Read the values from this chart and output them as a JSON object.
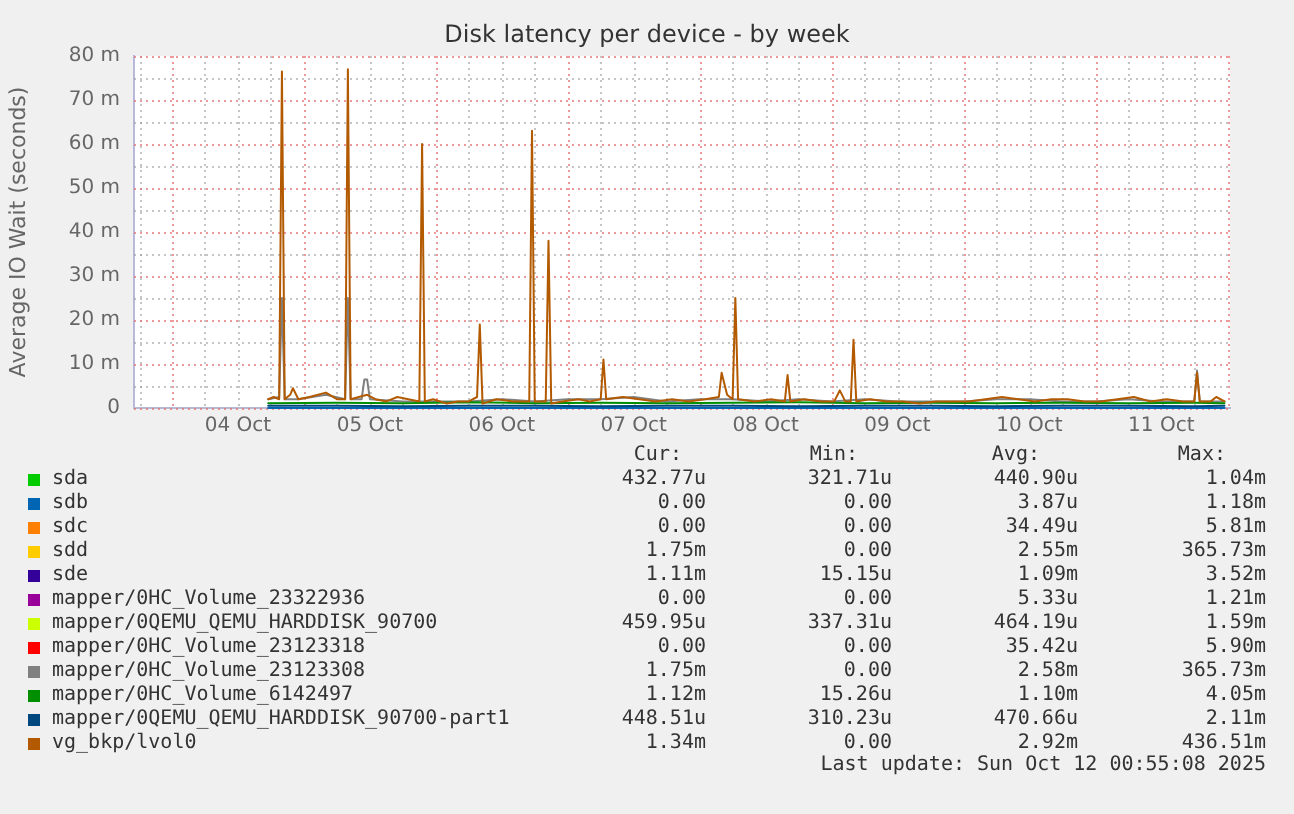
{
  "chart_data": {
    "type": "line",
    "title": "Disk latency per device - by week",
    "ylabel": "Average IO Wait (seconds)",
    "xlim": [
      "2025-10-03T17:05",
      "2025-10-12T00:30"
    ],
    "xticks": [
      {
        "value": "2025-10-03T18:00",
        "label": null
      },
      {
        "value": "2025-10-04T00:00",
        "label": null
      },
      {
        "value": "2025-10-04T06:00",
        "label": null
      },
      {
        "value": "2025-10-04T12:00",
        "label": "04 Oct"
      },
      {
        "value": "2025-10-04T18:00",
        "label": null
      },
      {
        "value": "2025-10-05T00:00",
        "label": null
      },
      {
        "value": "2025-10-05T06:00",
        "label": null
      },
      {
        "value": "2025-10-05T12:00",
        "label": "05 Oct"
      },
      {
        "value": "2025-10-05T18:00",
        "label": null
      },
      {
        "value": "2025-10-06T00:00",
        "label": null
      },
      {
        "value": "2025-10-06T06:00",
        "label": null
      },
      {
        "value": "2025-10-06T12:00",
        "label": "06 Oct"
      },
      {
        "value": "2025-10-06T18:00",
        "label": null
      },
      {
        "value": "2025-10-07T00:00",
        "label": null
      },
      {
        "value": "2025-10-07T06:00",
        "label": null
      },
      {
        "value": "2025-10-07T12:00",
        "label": "07 Oct"
      },
      {
        "value": "2025-10-07T18:00",
        "label": null
      },
      {
        "value": "2025-10-08T00:00",
        "label": null
      },
      {
        "value": "2025-10-08T06:00",
        "label": null
      },
      {
        "value": "2025-10-08T12:00",
        "label": "08 Oct"
      },
      {
        "value": "2025-10-08T18:00",
        "label": null
      },
      {
        "value": "2025-10-09T00:00",
        "label": null
      },
      {
        "value": "2025-10-09T06:00",
        "label": null
      },
      {
        "value": "2025-10-09T12:00",
        "label": "09 Oct"
      },
      {
        "value": "2025-10-09T18:00",
        "label": null
      },
      {
        "value": "2025-10-10T00:00",
        "label": null
      },
      {
        "value": "2025-10-10T06:00",
        "label": null
      },
      {
        "value": "2025-10-10T12:00",
        "label": "10 Oct"
      },
      {
        "value": "2025-10-10T18:00",
        "label": null
      },
      {
        "value": "2025-10-11T00:00",
        "label": null
      },
      {
        "value": "2025-10-11T06:00",
        "label": null
      },
      {
        "value": "2025-10-11T12:00",
        "label": "11 Oct"
      },
      {
        "value": "2025-10-11T18:00",
        "label": null
      },
      {
        "value": "2025-10-12T00:00",
        "label": null
      }
    ],
    "ylim": [
      0,
      80
    ],
    "yticks": [
      0,
      {
        "value": 5,
        "label": null
      },
      {
        "value": 10,
        "label": "10 m"
      },
      {
        "value": 15,
        "label": null
      },
      {
        "value": 20,
        "label": "20 m"
      },
      {
        "value": 25,
        "label": null
      },
      {
        "value": 30,
        "label": "30 m"
      },
      {
        "value": 35,
        "label": null
      },
      {
        "value": 40,
        "label": "40 m"
      },
      {
        "value": 45,
        "label": null
      },
      {
        "value": 50,
        "label": "50 m"
      },
      {
        "value": 55,
        "label": null
      },
      {
        "value": 60,
        "label": "60 m"
      },
      {
        "value": 65,
        "label": null
      },
      {
        "value": 70,
        "label": "70 m"
      },
      {
        "value": 75,
        "label": null
      },
      {
        "value": 80,
        "label": "80 m"
      }
    ],
    "grid": true,
    "legend": "bottom",
    "x": [
      "2025-10-04T17:30",
      "2025-10-05T06:00",
      "2025-10-05T18:00",
      "2025-10-06T06:00",
      "2025-10-06T18:00",
      "2025-10-07T06:00",
      "2025-10-07T18:00",
      "2025-10-08T06:00",
      "2025-10-08T18:00",
      "2025-10-09T06:00",
      "2025-10-09T18:00",
      "2025-10-10T06:00",
      "2025-10-10T18:00",
      "2025-10-11T06:00",
      "2025-10-11T18:00",
      "2025-10-11T23:30"
    ],
    "series": [
      {
        "name": "sda",
        "color": "#00cc00",
        "values": [
          null,
          null,
          null,
          null,
          null,
          null,
          null,
          null,
          null,
          null,
          null,
          null,
          null,
          null,
          null,
          null
        ]
      },
      {
        "name": "sdb",
        "color": "#0066b3",
        "values": [
          0,
          0,
          0,
          0,
          0,
          0,
          0,
          0,
          0,
          0,
          0,
          0,
          0,
          0,
          0,
          0
        ]
      },
      {
        "name": "sdc",
        "color": "#ff8000",
        "values": [
          null,
          null,
          null,
          null,
          null,
          null,
          null,
          null,
          null,
          null,
          null,
          null,
          null,
          null,
          null,
          null
        ]
      },
      {
        "name": "sdd",
        "color": "#ffcc00",
        "values": [
          null,
          null,
          null,
          null,
          null,
          null,
          null,
          null,
          null,
          null,
          null,
          null,
          null,
          null,
          null,
          null
        ]
      },
      {
        "name": "sde",
        "color": "#330099",
        "values": [
          null,
          null,
          null,
          null,
          null,
          null,
          null,
          null,
          null,
          null,
          null,
          null,
          null,
          null,
          null,
          null
        ]
      },
      {
        "name": "mapper/0HC_Volume_23322936",
        "color": "#990099",
        "values": [
          null,
          null,
          null,
          null,
          null,
          null,
          null,
          null,
          null,
          null,
          null,
          null,
          null,
          null,
          null,
          null
        ]
      },
      {
        "name": "mapper/0QEMU_QEMU_HARDDISK_90700",
        "color": "#ccff00",
        "values": [
          null,
          null,
          null,
          null,
          null,
          null,
          null,
          null,
          null,
          null,
          null,
          null,
          null,
          null,
          null,
          null
        ]
      },
      {
        "name": "mapper/0HC_Volume_23123318",
        "color": "#ff0000",
        "values": [
          null,
          null,
          null,
          null,
          null,
          null,
          null,
          null,
          null,
          null,
          null,
          null,
          null,
          null,
          null,
          null
        ]
      },
      {
        "name": "mapper/0HC_Volume_23123308",
        "color": "#808080",
        "x": [
          "2025-10-04T17:30",
          "2025-10-04T19:30",
          "2025-10-04T20:00",
          "2025-10-04T20:30",
          "2025-10-04T23:00",
          "2025-10-05T04:00",
          "2025-10-05T07:30",
          "2025-10-05T08:00",
          "2025-10-05T08:30",
          "2025-10-05T10:30",
          "2025-10-05T11:00",
          "2025-10-05T11:30",
          "2025-10-05T12:00",
          "2025-10-05T18:00",
          "2025-10-06T00:00",
          "2025-10-06T06:00",
          "2025-10-06T12:00",
          "2025-10-06T18:00",
          "2025-10-07T00:00",
          "2025-10-07T06:00",
          "2025-10-07T12:00",
          "2025-10-07T18:00",
          "2025-10-08T00:00",
          "2025-10-08T06:00",
          "2025-10-08T12:00",
          "2025-10-08T18:00",
          "2025-10-09T00:00",
          "2025-10-09T06:00",
          "2025-10-09T12:00",
          "2025-10-09T18:00",
          "2025-10-10T00:00",
          "2025-10-10T06:00",
          "2025-10-10T12:00",
          "2025-10-10T18:00",
          "2025-10-11T00:00",
          "2025-10-11T06:00",
          "2025-10-11T12:00",
          "2025-10-11T18:00",
          "2025-10-11T18:30",
          "2025-10-11T19:00",
          "2025-10-11T23:30"
        ],
        "values": [
          2,
          2.5,
          25,
          2,
          2,
          3,
          2,
          25,
          2,
          2,
          6.5,
          6.5,
          2,
          1.5,
          1.5,
          1.5,
          2,
          1.5,
          2,
          2,
          2.5,
          1.5,
          2,
          2,
          1.5,
          2,
          1.5,
          2,
          1.5,
          1.5,
          1.5,
          2,
          2,
          1.5,
          1.5,
          2,
          1.5,
          1.5,
          8.5,
          1.5,
          1.5
        ]
      },
      {
        "name": "mapper/0HC_Volume_6142497",
        "color": "#008f00",
        "values": [
          1.1,
          1.2,
          1.1,
          1.3,
          1.1,
          1.2,
          1.1,
          1.2,
          1.3,
          1.1,
          1.2,
          1.1,
          1.2,
          1.1,
          1.2,
          1.1
        ]
      },
      {
        "name": "mapper/0QEMU_QEMU_HARDDISK_90700-part1",
        "color": "#00487d",
        "values": [
          0.5,
          0.5,
          0.4,
          0.5,
          0.5,
          0.4,
          0.5,
          0.5,
          0.4,
          0.5,
          0.5,
          0.4,
          0.5,
          0.5,
          0.4,
          0.5
        ]
      },
      {
        "name": "vg_bkp/lvol0",
        "color": "#b35a00",
        "x": [
          "2025-10-04T17:30",
          "2025-10-04T18:30",
          "2025-10-04T19:30",
          "2025-10-04T20:00",
          "2025-10-04T20:30",
          "2025-10-04T21:30",
          "2025-10-04T22:00",
          "2025-10-04T23:00",
          "2025-10-05T01:00",
          "2025-10-05T04:00",
          "2025-10-05T06:00",
          "2025-10-05T07:30",
          "2025-10-05T08:00",
          "2025-10-05T08:30",
          "2025-10-05T10:00",
          "2025-10-05T11:30",
          "2025-10-05T13:00",
          "2025-10-05T15:00",
          "2025-10-05T17:00",
          "2025-10-05T19:00",
          "2025-10-05T21:00",
          "2025-10-05T21:30",
          "2025-10-05T22:00",
          "2025-10-05T23:30",
          "2025-10-06T02:00",
          "2025-10-06T04:00",
          "2025-10-06T06:00",
          "2025-10-06T07:30",
          "2025-10-06T08:00",
          "2025-10-06T08:30",
          "2025-10-06T11:00",
          "2025-10-06T14:00",
          "2025-10-06T17:00",
          "2025-10-06T17:30",
          "2025-10-06T18:00",
          "2025-10-06T20:00",
          "2025-10-06T20:30",
          "2025-10-06T21:00",
          "2025-10-06T23:00",
          "2025-10-07T02:00",
          "2025-10-07T04:00",
          "2025-10-07T06:00",
          "2025-10-07T06:30",
          "2025-10-07T07:00",
          "2025-10-07T10:00",
          "2025-10-07T13:00",
          "2025-10-07T16:00",
          "2025-10-07T19:00",
          "2025-10-07T22:00",
          "2025-10-08T01:00",
          "2025-10-08T03:30",
          "2025-10-08T04:00",
          "2025-10-08T05:00",
          "2025-10-08T06:00",
          "2025-10-08T06:30",
          "2025-10-08T07:00",
          "2025-10-08T10:00",
          "2025-10-08T13:00",
          "2025-10-08T15:30",
          "2025-10-08T16:00",
          "2025-10-08T16:30",
          "2025-10-08T19:00",
          "2025-10-08T22:00",
          "2025-10-09T00:30",
          "2025-10-09T01:30",
          "2025-10-09T02:30",
          "2025-10-09T03:30",
          "2025-10-09T04:00",
          "2025-10-09T04:30",
          "2025-10-09T07:00",
          "2025-10-09T10:00",
          "2025-10-09T13:00",
          "2025-10-09T16:00",
          "2025-10-09T19:00",
          "2025-10-09T22:00",
          "2025-10-10T01:00",
          "2025-10-10T04:00",
          "2025-10-10T07:00",
          "2025-10-10T10:00",
          "2025-10-10T13:00",
          "2025-10-10T16:00",
          "2025-10-10T19:00",
          "2025-10-10T22:00",
          "2025-10-11T01:00",
          "2025-10-11T04:00",
          "2025-10-11T07:00",
          "2025-10-11T10:00",
          "2025-10-11T13:00",
          "2025-10-11T16:00",
          "2025-10-11T18:00",
          "2025-10-11T18:30",
          "2025-10-11T19:00",
          "2025-10-11T21:00",
          "2025-10-11T22:00",
          "2025-10-11T23:30"
        ],
        "values": [
          2,
          2.5,
          2,
          76.5,
          2,
          3,
          4.5,
          2,
          2.5,
          3.5,
          2,
          2,
          77,
          2,
          2.5,
          3,
          2,
          1.5,
          2.5,
          2,
          1.5,
          60,
          1.5,
          2,
          1,
          1.5,
          1.5,
          2.5,
          19,
          1,
          2,
          1.5,
          1.5,
          63,
          1.5,
          1.5,
          38,
          1,
          1.5,
          2,
          1.5,
          2,
          11,
          2,
          2.5,
          2,
          1.5,
          2,
          1.5,
          2,
          2.5,
          8,
          3,
          2,
          25,
          2,
          1.5,
          2,
          1.5,
          7.5,
          1.5,
          2,
          1.5,
          1.5,
          4,
          1.5,
          1.5,
          15.5,
          1.5,
          2,
          1.5,
          1.5,
          1,
          1.5,
          1.5,
          1.5,
          2,
          2.5,
          2,
          1.5,
          2,
          2,
          1.5,
          1.5,
          2,
          2.5,
          1.5,
          2,
          1.5,
          1.5,
          8,
          1.5,
          1.5,
          2.5,
          1.5
        ]
      }
    ],
    "annotations": [
      "Cur:",
      "Min:",
      "Avg:",
      "Max:",
      "432.77u",
      "321.71u",
      "440.90u",
      "1.04m",
      "0.00",
      "0.00",
      "3.87u",
      "1.18m",
      "0.00",
      "0.00",
      "34.49u",
      "5.81m",
      "1.75m",
      "0.00",
      "2.55m",
      "365.73m",
      "1.11m",
      "15.15u",
      "1.09m",
      "3.52m",
      "0.00",
      "0.00",
      "5.33u",
      "1.21m",
      "459.95u",
      "337.31u",
      "464.19u",
      "1.59m",
      "0.00",
      "0.00",
      "35.42u",
      "5.90m",
      "1.75m",
      "0.00",
      "2.58m",
      "365.73m",
      "1.12m",
      "15.26u",
      "1.10m",
      "4.05m",
      "448.51u",
      "310.23u",
      "470.66u",
      "2.11m",
      "1.34m",
      "0.00",
      "2.92m",
      "436.51m",
      "Last update: Sun Oct 12 00:55:08 2025"
    ]
  }
}
